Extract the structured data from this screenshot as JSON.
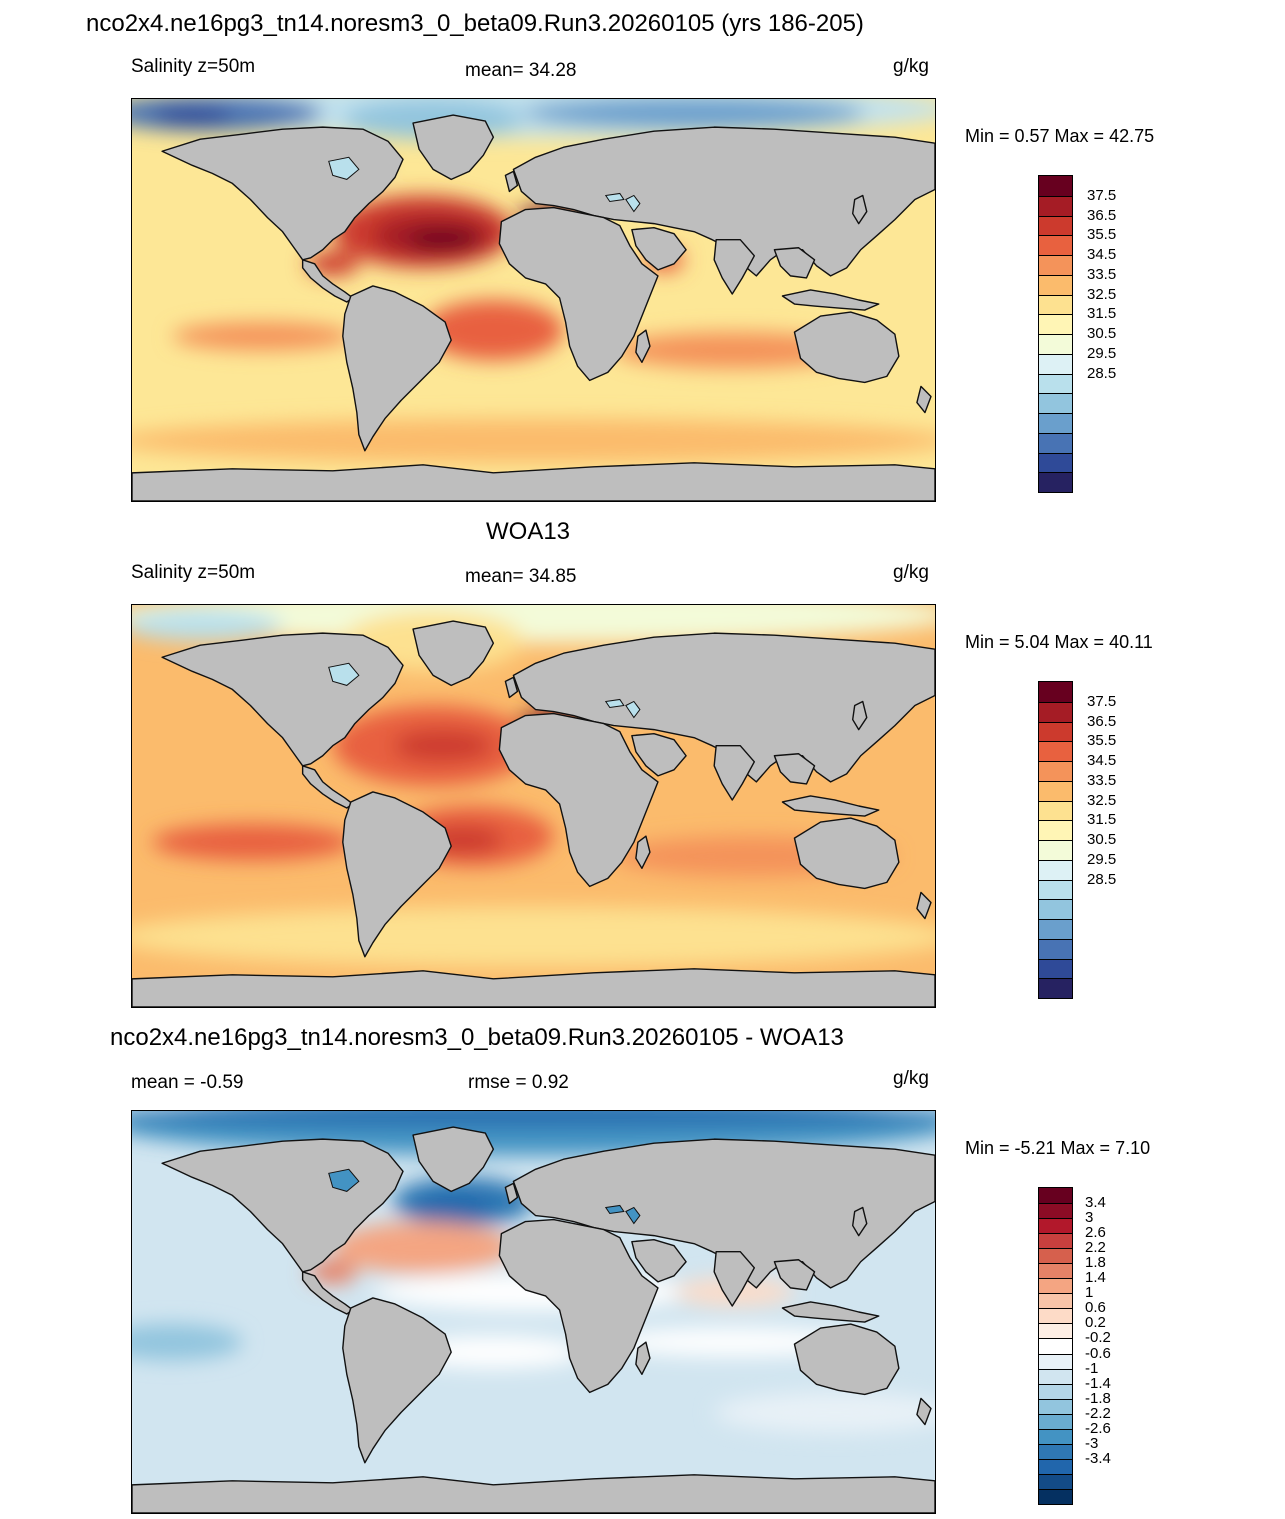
{
  "panels": [
    {
      "title": "nco2x4.ne16pg3_tn14.noresm3_0_beta09.Run3.20260105 (yrs 186-205)",
      "left_label": "Salinity z=50m",
      "center_label": "mean=  34.28",
      "right_label": "g/kg",
      "min_max": "Min =   0.57 Max =  42.75",
      "map_kind": "model",
      "colorbar": {
        "labels": [
          "37.5",
          "36.5",
          "35.5",
          "34.5",
          "33.5",
          "32.5",
          "31.5",
          "30.5",
          "29.5",
          "28.5"
        ],
        "colors": [
          "#67001f",
          "#a51c25",
          "#cc3a2d",
          "#e8613f",
          "#f4935a",
          "#fbbb6c",
          "#fde190",
          "#fff5b5",
          "#f3fbd9",
          "#ddf1f5",
          "#b9e0ec",
          "#92c5de",
          "#6a9fcc",
          "#4873b4",
          "#2f4a98",
          "#262261"
        ]
      }
    },
    {
      "title": "WOA13",
      "left_label": "Salinity z=50m",
      "center_label": "mean=  34.85",
      "right_label": "g/kg",
      "min_max": "Min =   5.04 Max =  40.11",
      "map_kind": "obs",
      "colorbar": {
        "labels": [
          "37.5",
          "36.5",
          "35.5",
          "34.5",
          "33.5",
          "32.5",
          "31.5",
          "30.5",
          "29.5",
          "28.5"
        ],
        "colors": [
          "#67001f",
          "#a51c25",
          "#cc3a2d",
          "#e8613f",
          "#f4935a",
          "#fbbb6c",
          "#fde190",
          "#fff5b5",
          "#f3fbd9",
          "#ddf1f5",
          "#b9e0ec",
          "#92c5de",
          "#6a9fcc",
          "#4873b4",
          "#2f4a98",
          "#262261"
        ]
      }
    },
    {
      "title": "nco2x4.ne16pg3_tn14.noresm3_0_beta09.Run3.20260105 - WOA13",
      "left_label": "mean =  -0.59",
      "center_label": "rmse =   0.92",
      "right_label": "g/kg",
      "min_max": "Min =  -5.21 Max =   7.10",
      "map_kind": "diff",
      "colorbar": {
        "labels": [
          "3.4",
          "3",
          "2.6",
          "2.2",
          "1.8",
          "1.4",
          "1",
          "0.6",
          "0.2",
          "-0.2",
          "-0.6",
          "-1",
          "-1.4",
          "-1.8",
          "-2.2",
          "-2.6",
          "-3",
          "-3.4"
        ],
        "colors": [
          "#67001f",
          "#8c0c25",
          "#b2182b",
          "#c8403e",
          "#d6604d",
          "#e58267",
          "#f4a582",
          "#f8c4a8",
          "#fddbc7",
          "#fdeee4",
          "#ffffff",
          "#e8f1f7",
          "#d1e5f0",
          "#b4d6e8",
          "#92c5de",
          "#6aacd0",
          "#4393c3",
          "#2f78b4",
          "#2166ac",
          "#134b87",
          "#053061"
        ]
      }
    }
  ]
}
